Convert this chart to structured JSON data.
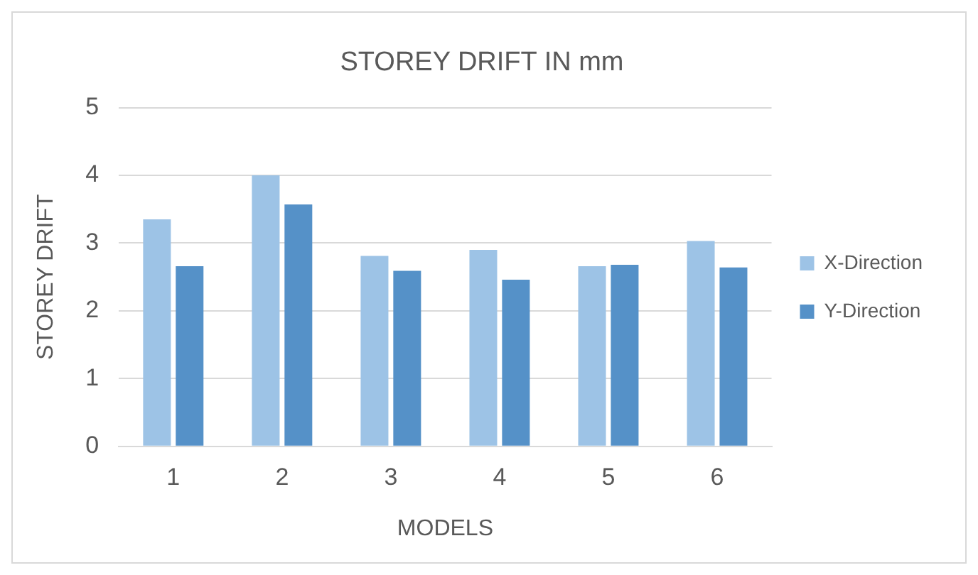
{
  "chart_data": {
    "type": "bar",
    "title": "STOREY DRIFT IN mm",
    "xlabel": "MODELS",
    "ylabel": "STOREY DRIFT",
    "categories": [
      "1",
      "2",
      "3",
      "4",
      "5",
      "6"
    ],
    "series": [
      {
        "name": "X-Direction",
        "color": "#9dc3e6",
        "values": [
          3.35,
          4.0,
          2.81,
          2.9,
          2.66,
          3.03
        ]
      },
      {
        "name": "Y-Direction",
        "color": "#5591c8",
        "values": [
          2.66,
          3.57,
          2.59,
          2.46,
          2.68,
          2.64
        ]
      }
    ],
    "ylim": [
      0,
      5
    ],
    "yticks": [
      0,
      1,
      2,
      3,
      4,
      5
    ],
    "grid": "y",
    "legend": "right"
  }
}
